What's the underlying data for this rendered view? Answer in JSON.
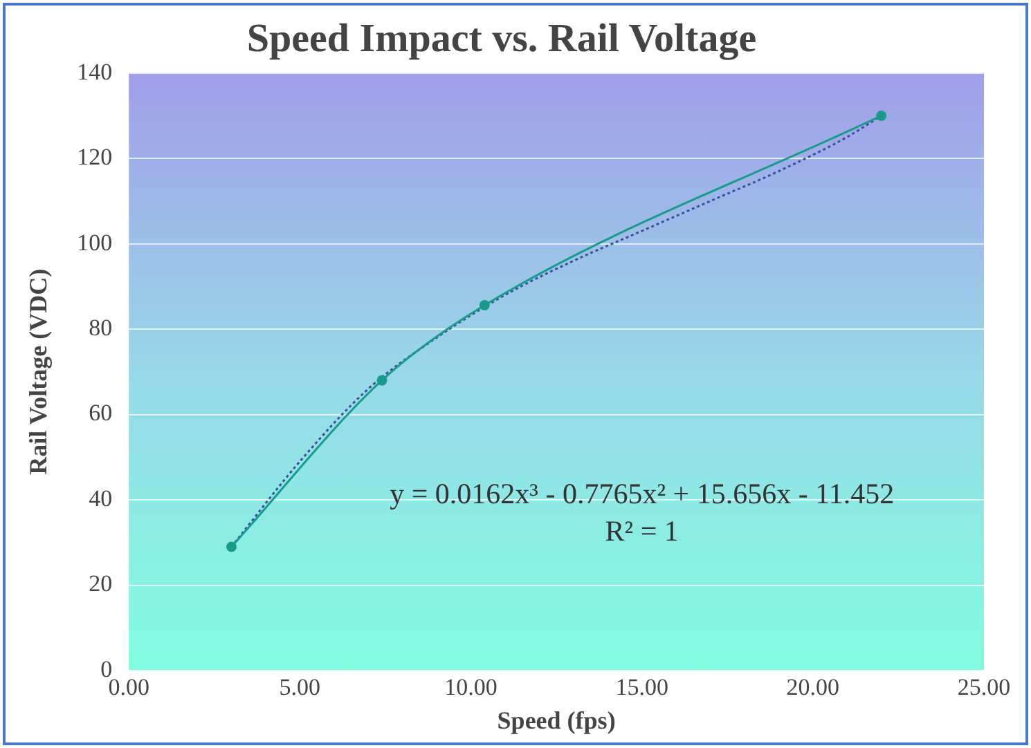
{
  "chart_data": {
    "type": "line",
    "title": "Speed Impact vs. Rail Voltage",
    "xlabel": "Speed (fps)",
    "ylabel": "Rail Voltage (VDC)",
    "series": [
      {
        "type": "line",
        "color": "#1a9a8a",
        "x": [
          3,
          7.4,
          10.4,
          22
        ],
        "values": [
          29,
          68,
          85.6,
          130
        ],
        "marker": "circle",
        "line_style": "solid"
      },
      {
        "type": "line",
        "color": "#3a4fa0",
        "x": [
          3,
          5,
          7,
          9,
          11,
          13,
          15,
          17,
          19,
          21,
          22
        ],
        "values": [
          29,
          49,
          66,
          78,
          88,
          96,
          103,
          110,
          117,
          125,
          130
        ],
        "marker": "none",
        "line_style": "dotted"
      }
    ],
    "xlim": [
      0,
      25
    ],
    "xticks": [
      {
        "value": 0,
        "label": "0.00"
      },
      {
        "value": 5,
        "label": "5.00"
      },
      {
        "value": 10,
        "label": "10.00"
      },
      {
        "value": 15,
        "label": "15.00"
      },
      {
        "value": 20,
        "label": "20.00"
      },
      {
        "value": 25,
        "label": "25.00"
      }
    ],
    "ylim": [
      0,
      140
    ],
    "yticks": [
      0,
      20,
      40,
      60,
      80,
      100,
      120,
      140
    ],
    "grid": "y",
    "legend": false,
    "annotations": [
      "y = 0.0162x³ - 0.7765x² + 15.656x - 11.452",
      "R² = 1"
    ]
  }
}
